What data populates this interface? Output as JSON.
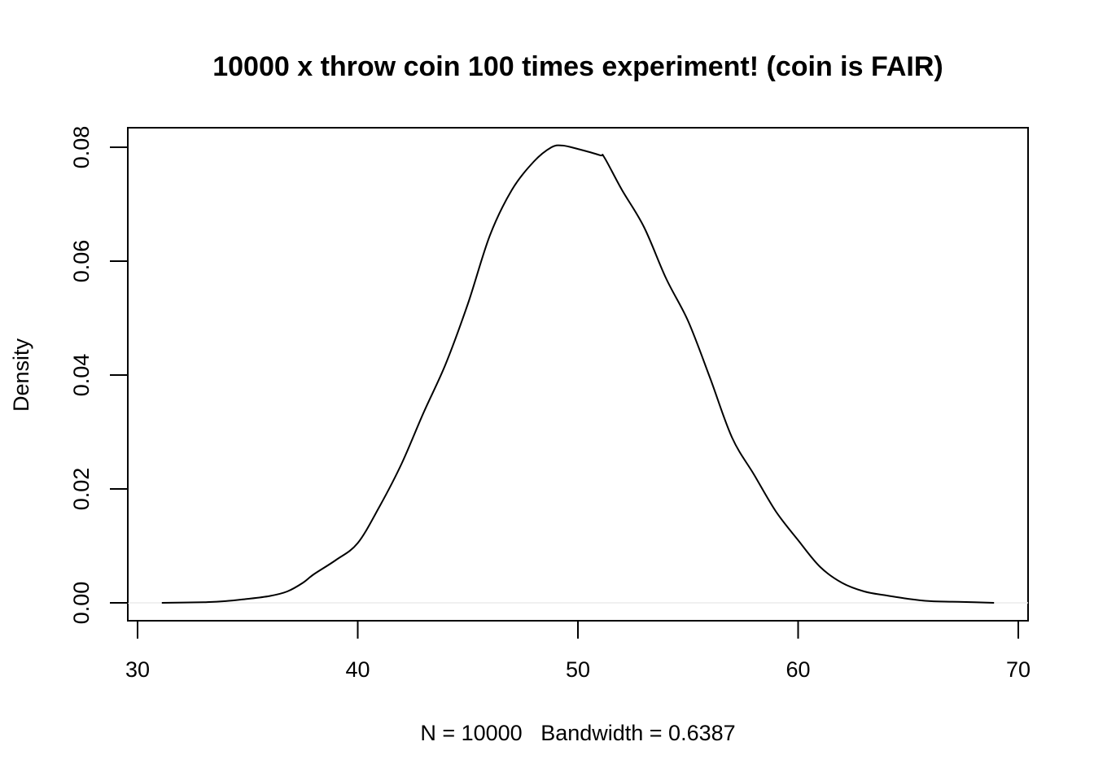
{
  "chart_data": {
    "type": "line",
    "title": "10000 x throw coin 100 times experiment! (coin is FAIR)",
    "xlabel": "N = 10000   Bandwidth = 0.6387",
    "ylabel": "Density",
    "xlim": [
      30,
      70
    ],
    "ylim": [
      0,
      0.08
    ],
    "x_ticks": [
      "30",
      "40",
      "50",
      "60",
      "70"
    ],
    "y_ticks": [
      "0.00",
      "0.02",
      "0.04",
      "0.06",
      "0.08"
    ],
    "grid": false,
    "series": [
      {
        "x": [
          31.1,
          33,
          34,
          35,
          36,
          36.8,
          37.5,
          38,
          39,
          40,
          41,
          42,
          43,
          44,
          45,
          46,
          47,
          48,
          48.8,
          49.3,
          50,
          51,
          51.2,
          52,
          53,
          54,
          55,
          56,
          57,
          58,
          59,
          60,
          61,
          62,
          63,
          64,
          65,
          66,
          67,
          68,
          68.9
        ],
        "y": [
          0.0,
          0.0001,
          0.0003,
          0.0007,
          0.0012,
          0.002,
          0.0035,
          0.005,
          0.0075,
          0.0105,
          0.017,
          0.0245,
          0.0335,
          0.042,
          0.0525,
          0.0645,
          0.0725,
          0.0775,
          0.08,
          0.0803,
          0.0797,
          0.0786,
          0.0782,
          0.0725,
          0.066,
          0.057,
          0.0495,
          0.0395,
          0.029,
          0.0225,
          0.016,
          0.011,
          0.0063,
          0.0035,
          0.002,
          0.0013,
          0.0007,
          0.0003,
          0.0002,
          0.0001,
          0.0
        ]
      }
    ]
  }
}
